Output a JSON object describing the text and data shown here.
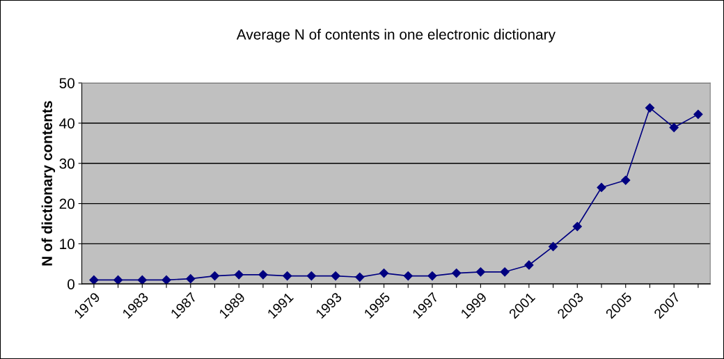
{
  "chart_data": {
    "type": "line",
    "title": "Average N of contents in one electronic dictionary",
    "ylabel": "N of dictionary contents",
    "categories": [
      "1979",
      null,
      "1983",
      null,
      "1987",
      null,
      "1989",
      null,
      "1991",
      null,
      "1993",
      null,
      "1995",
      null,
      "1997",
      null,
      "1999",
      null,
      "2001",
      null,
      "2003",
      null,
      "2005",
      null,
      "2007",
      null
    ],
    "series": [
      {
        "color": "#000080",
        "values": [
          1,
          1,
          1,
          1,
          1.3,
          2,
          2.3,
          2.3,
          2,
          2,
          2,
          1.7,
          2.7,
          2,
          2,
          2.7,
          3,
          3,
          4.7,
          9.3,
          14.3,
          24,
          25.8,
          43.8,
          38.9,
          42.2
        ]
      }
    ],
    "ylim": [
      0,
      50
    ],
    "yticks": [
      0,
      10,
      20,
      30,
      40,
      50
    ],
    "grid": "y",
    "legend": false,
    "marker": "diamond",
    "line_style": "solid"
  }
}
